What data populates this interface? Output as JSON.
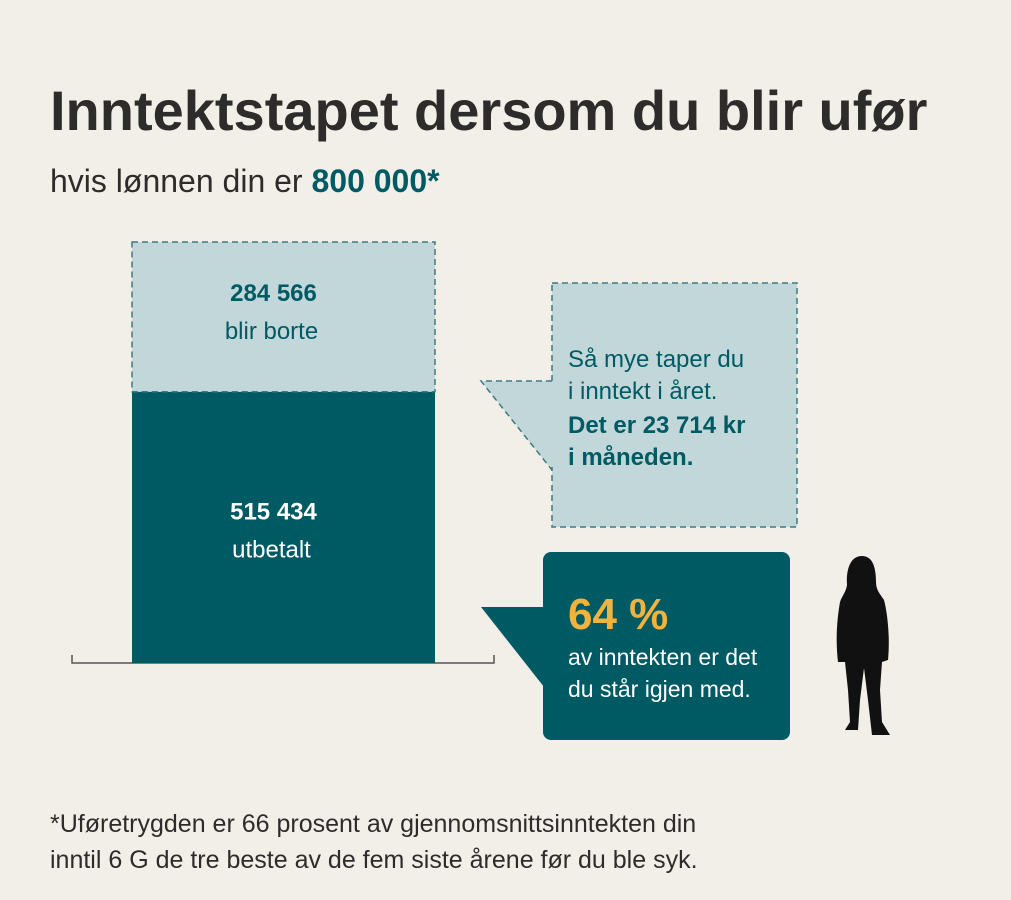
{
  "chart_data": {
    "type": "stacked_bar",
    "title": "Inntektstapet dersom du blir ufør",
    "subtitle": "hvis lønnen din er",
    "subtitle_highlight": "800 000*",
    "categories": [
      null
    ],
    "series": [
      {
        "name": "utbetalt",
        "color": "#005a64",
        "values": [
          515434
        ],
        "value_labels": [
          "515 434"
        ]
      },
      {
        "name": "blir borte",
        "color": "#c2d7da",
        "values": [
          284566
        ],
        "value_labels": [
          "284 566"
        ]
      }
    ],
    "ylim": [
      0,
      800000
    ],
    "annotations": [
      {
        "lines": [
          "Så mye taper du",
          "i inntekt i året."
        ],
        "bold_lines": [
          "Det er 23 714 kr",
          "i måneden."
        ]
      },
      {
        "highlight": "64 %",
        "lines": [
          "av inntekten er det",
          "du står igjen med."
        ]
      }
    ],
    "footnote": [
      "*Uføretrygden er 66 prosent av gjennomsnittsinntekten din",
      "inntil 6 G de tre beste av de fem siste årene før du ble syk."
    ]
  }
}
